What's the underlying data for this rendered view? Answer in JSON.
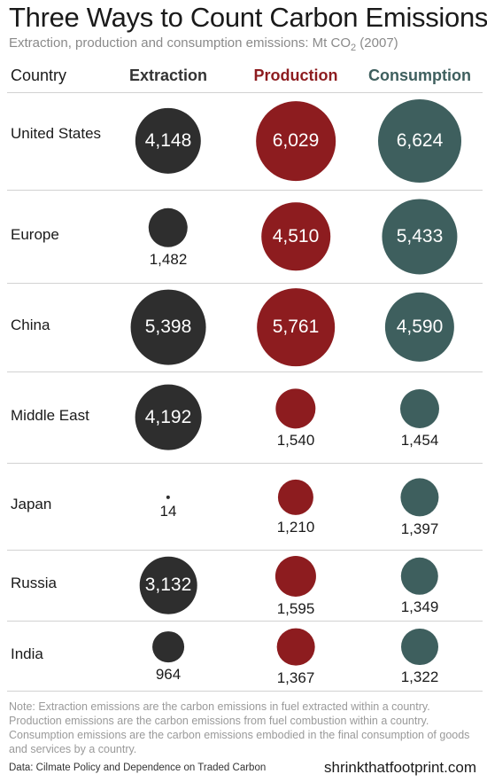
{
  "title": "Three Ways to Count Carbon Emissions",
  "subtitle": {
    "prefix": "Extraction, production and consumption emissions: Mt CO",
    "subscript": "2",
    "suffix": " (2007)"
  },
  "columns": {
    "country": "Country",
    "extraction": "Extraction",
    "production": "Production",
    "consumption": "Consumption"
  },
  "colors": {
    "extraction": "#2e2e2e",
    "production": "#8d1c1f",
    "consumption": "#3e5f5e"
  },
  "chart_data": {
    "type": "bubble-table",
    "unit": "Mt CO2 (2007)",
    "series": [
      "Extraction",
      "Production",
      "Consumption"
    ],
    "rows": [
      {
        "country": "United States",
        "extraction": 4148,
        "production": 6029,
        "consumption": 6624,
        "labels": [
          "4,148",
          "6,029",
          "6,624"
        ]
      },
      {
        "country": "Europe",
        "extraction": 1482,
        "production": 4510,
        "consumption": 5433,
        "labels": [
          "1,482",
          "4,510",
          "5,433"
        ]
      },
      {
        "country": "China",
        "extraction": 5398,
        "production": 5761,
        "consumption": 4590,
        "labels": [
          "5,398",
          "5,761",
          "4,590"
        ]
      },
      {
        "country": "Middle East",
        "extraction": 4192,
        "production": 1540,
        "consumption": 1454,
        "labels": [
          "4,192",
          "1,540",
          "1,454"
        ]
      },
      {
        "country": "Japan",
        "extraction": 14,
        "production": 1210,
        "consumption": 1397,
        "labels": [
          "14",
          "1,210",
          "1,397"
        ]
      },
      {
        "country": "Russia",
        "extraction": 3132,
        "production": 1595,
        "consumption": 1349,
        "labels": [
          "3,132",
          "1,595",
          "1,349"
        ]
      },
      {
        "country": "India",
        "extraction": 964,
        "production": 1367,
        "consumption": 1322,
        "labels": [
          "964",
          "1,367",
          "1,322"
        ]
      }
    ]
  },
  "note": "Note:  Extraction emissions are the carbon emissions in fuel extracted within a country.  Production emissions are the carbon emissions from fuel combustion within a country.  Consumption emissions are the carbon emissions embodied in the final consumption of goods and services by a country.",
  "source": "Data: Cilmate Policy and Dependence on Traded Carbon",
  "site": "shrinkthatfootprint.com"
}
